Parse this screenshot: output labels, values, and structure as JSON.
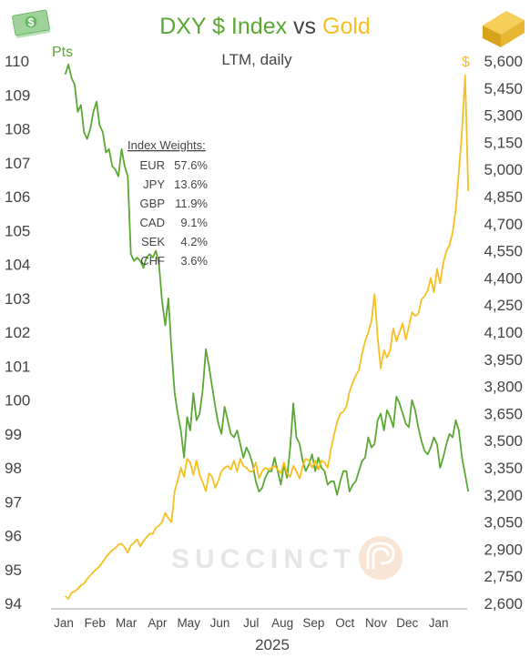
{
  "colors": {
    "dxy": "#5aa832",
    "gold": "#f7bf1f",
    "text": "#444444",
    "watermark": "#e4e4e4",
    "watermark_icon": "#f7e0cc"
  },
  "icons": {
    "left": "dollar-bills-icon",
    "right": "gold-bars-icon",
    "watermark": "succinct-logo-icon"
  },
  "watermark": {
    "text": "SUCCINCT"
  },
  "chart_data": {
    "type": "line",
    "title": {
      "part1": "DXY $ Index",
      "part2": " vs ",
      "part3": "Gold"
    },
    "subtitle": "LTM, daily",
    "left_axis": {
      "unit": "Pts",
      "ylim": [
        94,
        110
      ],
      "ticks": [
        "94",
        "95",
        "96",
        "97",
        "98",
        "99",
        "100",
        "101",
        "102",
        "103",
        "104",
        "105",
        "106",
        "107",
        "108",
        "109",
        "110"
      ]
    },
    "right_axis": {
      "unit": "$",
      "ylim": [
        2600,
        5600
      ],
      "ticks": [
        "2,600",
        "2,750",
        "2,900",
        "3,050",
        "3,200",
        "3,350",
        "3,500",
        "3,650",
        "3,800",
        "3,950",
        "4,100",
        "4,250",
        "4,400",
        "4,550",
        "4,700",
        "4,850",
        "5,000",
        "5,150",
        "5,300",
        "5,450",
        "5,600"
      ]
    },
    "x_axis": {
      "months": [
        "Jan",
        "Feb",
        "Mar",
        "Apr",
        "May",
        "Jun",
        "Jul",
        "Aug",
        "Sep",
        "Oct",
        "Nov",
        "Dec",
        "Jan"
      ],
      "year_label": "2025",
      "xlim": [
        0,
        12.95
      ]
    },
    "grid": false,
    "annotation": {
      "title": "Index Weights:",
      "rows": [
        {
          "ccy": "EUR",
          "pct": "57.6%"
        },
        {
          "ccy": "JPY",
          "pct": "13.6%"
        },
        {
          "ccy": "GBP",
          "pct": "11.9%"
        },
        {
          "ccy": "CAD",
          "pct": "9.1%"
        },
        {
          "ccy": "SEK",
          "pct": "4.2%"
        },
        {
          "ccy": "CHF",
          "pct": "3.6%"
        }
      ]
    },
    "series": [
      {
        "name": "DXY $ Index",
        "axis": "left",
        "points": [
          [
            0.05,
            109.6
          ],
          [
            0.15,
            109.9
          ],
          [
            0.25,
            109.5
          ],
          [
            0.35,
            109.3
          ],
          [
            0.45,
            108.5
          ],
          [
            0.55,
            108.7
          ],
          [
            0.65,
            107.9
          ],
          [
            0.75,
            107.7
          ],
          [
            0.85,
            108.0
          ],
          [
            0.95,
            108.5
          ],
          [
            1.05,
            108.8
          ],
          [
            1.15,
            108.1
          ],
          [
            1.25,
            107.9
          ],
          [
            1.35,
            107.3
          ],
          [
            1.45,
            107.4
          ],
          [
            1.55,
            106.9
          ],
          [
            1.65,
            106.8
          ],
          [
            1.75,
            106.6
          ],
          [
            1.85,
            107.4
          ],
          [
            1.95,
            106.9
          ],
          [
            2.05,
            106.6
          ],
          [
            2.15,
            104.3
          ],
          [
            2.25,
            104.1
          ],
          [
            2.35,
            104.2
          ],
          [
            2.45,
            104.1
          ],
          [
            2.55,
            103.9
          ],
          [
            2.65,
            104.2
          ],
          [
            2.75,
            104.3
          ],
          [
            2.85,
            104.2
          ],
          [
            2.95,
            104.4
          ],
          [
            3.05,
            104.0
          ],
          [
            3.15,
            102.9
          ],
          [
            3.25,
            102.2
          ],
          [
            3.35,
            103.0
          ],
          [
            3.45,
            101.5
          ],
          [
            3.55,
            100.2
          ],
          [
            3.65,
            99.6
          ],
          [
            3.75,
            99.1
          ],
          [
            3.85,
            98.3
          ],
          [
            3.95,
            99.5
          ],
          [
            4.05,
            99.1
          ],
          [
            4.15,
            100.2
          ],
          [
            4.25,
            99.4
          ],
          [
            4.35,
            99.6
          ],
          [
            4.45,
            100.3
          ],
          [
            4.55,
            101.5
          ],
          [
            4.65,
            101.0
          ],
          [
            4.75,
            100.4
          ],
          [
            4.85,
            99.8
          ],
          [
            4.95,
            99.3
          ],
          [
            5.05,
            99.0
          ],
          [
            5.15,
            99.8
          ],
          [
            5.25,
            99.4
          ],
          [
            5.35,
            99.0
          ],
          [
            5.45,
            98.9
          ],
          [
            5.55,
            99.1
          ],
          [
            5.65,
            98.7
          ],
          [
            5.75,
            98.3
          ],
          [
            5.85,
            98.6
          ],
          [
            5.95,
            98.4
          ],
          [
            6.05,
            98.1
          ],
          [
            6.15,
            97.6
          ],
          [
            6.25,
            97.3
          ],
          [
            6.35,
            97.4
          ],
          [
            6.45,
            97.7
          ],
          [
            6.55,
            97.9
          ],
          [
            6.65,
            97.9
          ],
          [
            6.75,
            98.3
          ],
          [
            6.85,
            97.9
          ],
          [
            6.95,
            97.5
          ],
          [
            7.05,
            98.1
          ],
          [
            7.15,
            97.7
          ],
          [
            7.25,
            98.6
          ],
          [
            7.35,
            99.9
          ],
          [
            7.45,
            98.9
          ],
          [
            7.55,
            98.7
          ],
          [
            7.65,
            98.2
          ],
          [
            7.75,
            97.9
          ],
          [
            7.85,
            98.1
          ],
          [
            7.95,
            98.4
          ],
          [
            8.05,
            97.9
          ],
          [
            8.15,
            98.3
          ],
          [
            8.25,
            98.0
          ],
          [
            8.35,
            97.9
          ],
          [
            8.45,
            97.5
          ],
          [
            8.55,
            97.6
          ],
          [
            8.65,
            97.6
          ],
          [
            8.75,
            97.2
          ],
          [
            8.85,
            97.6
          ],
          [
            8.95,
            97.9
          ],
          [
            9.05,
            97.9
          ],
          [
            9.15,
            97.3
          ],
          [
            9.25,
            97.5
          ],
          [
            9.35,
            97.6
          ],
          [
            9.45,
            97.9
          ],
          [
            9.55,
            98.2
          ],
          [
            9.65,
            98.3
          ],
          [
            9.75,
            98.9
          ],
          [
            9.85,
            98.6
          ],
          [
            9.95,
            98.7
          ],
          [
            10.05,
            99.4
          ],
          [
            10.15,
            99.6
          ],
          [
            10.25,
            99.1
          ],
          [
            10.35,
            99.7
          ],
          [
            10.45,
            99.5
          ],
          [
            10.55,
            99.2
          ],
          [
            10.65,
            100.1
          ],
          [
            10.75,
            99.9
          ],
          [
            10.85,
            99.6
          ],
          [
            10.95,
            99.3
          ],
          [
            11.05,
            99.2
          ],
          [
            11.15,
            100.0
          ],
          [
            11.25,
            99.7
          ],
          [
            11.35,
            99.2
          ],
          [
            11.45,
            98.8
          ],
          [
            11.55,
            98.5
          ],
          [
            11.65,
            98.4
          ],
          [
            11.75,
            98.6
          ],
          [
            11.85,
            98.9
          ],
          [
            11.95,
            98.7
          ],
          [
            12.05,
            98.0
          ],
          [
            12.15,
            98.3
          ],
          [
            12.25,
            98.7
          ],
          [
            12.35,
            99.0
          ],
          [
            12.45,
            98.9
          ],
          [
            12.55,
            99.4
          ],
          [
            12.65,
            99.1
          ],
          [
            12.75,
            98.3
          ],
          [
            12.85,
            97.8
          ],
          [
            12.95,
            97.3
          ]
        ]
      },
      {
        "name": "Gold",
        "axis": "right",
        "points": [
          [
            0.05,
            2640
          ],
          [
            0.15,
            2625
          ],
          [
            0.25,
            2660
          ],
          [
            0.35,
            2665
          ],
          [
            0.45,
            2680
          ],
          [
            0.55,
            2700
          ],
          [
            0.65,
            2710
          ],
          [
            0.75,
            2735
          ],
          [
            0.85,
            2755
          ],
          [
            0.95,
            2775
          ],
          [
            1.05,
            2790
          ],
          [
            1.15,
            2805
          ],
          [
            1.25,
            2830
          ],
          [
            1.35,
            2855
          ],
          [
            1.45,
            2875
          ],
          [
            1.55,
            2895
          ],
          [
            1.65,
            2905
          ],
          [
            1.75,
            2925
          ],
          [
            1.85,
            2930
          ],
          [
            1.95,
            2910
          ],
          [
            2.05,
            2880
          ],
          [
            2.15,
            2920
          ],
          [
            2.25,
            2935
          ],
          [
            2.35,
            2955
          ],
          [
            2.45,
            2915
          ],
          [
            2.55,
            2945
          ],
          [
            2.65,
            2965
          ],
          [
            2.75,
            2985
          ],
          [
            2.85,
            2985
          ],
          [
            2.95,
            3020
          ],
          [
            3.05,
            3030
          ],
          [
            3.15,
            3050
          ],
          [
            3.25,
            3100
          ],
          [
            3.35,
            3070
          ],
          [
            3.45,
            3050
          ],
          [
            3.55,
            3220
          ],
          [
            3.65,
            3280
          ],
          [
            3.75,
            3350
          ],
          [
            3.85,
            3300
          ],
          [
            3.95,
            3400
          ],
          [
            4.05,
            3380
          ],
          [
            4.15,
            3310
          ],
          [
            4.25,
            3390
          ],
          [
            4.35,
            3310
          ],
          [
            4.45,
            3270
          ],
          [
            4.55,
            3220
          ],
          [
            4.65,
            3320
          ],
          [
            4.75,
            3300
          ],
          [
            4.85,
            3240
          ],
          [
            4.95,
            3280
          ],
          [
            5.05,
            3330
          ],
          [
            5.15,
            3350
          ],
          [
            5.25,
            3360
          ],
          [
            5.35,
            3340
          ],
          [
            5.45,
            3390
          ],
          [
            5.55,
            3330
          ],
          [
            5.65,
            3400
          ],
          [
            5.75,
            3360
          ],
          [
            5.85,
            3350
          ],
          [
            5.95,
            3330
          ],
          [
            6.05,
            3330
          ],
          [
            6.15,
            3380
          ],
          [
            6.25,
            3290
          ],
          [
            6.35,
            3330
          ],
          [
            6.45,
            3350
          ],
          [
            6.55,
            3340
          ],
          [
            6.65,
            3350
          ],
          [
            6.75,
            3360
          ],
          [
            6.85,
            3340
          ],
          [
            6.95,
            3320
          ],
          [
            7.05,
            3380
          ],
          [
            7.15,
            3320
          ],
          [
            7.25,
            3300
          ],
          [
            7.35,
            3360
          ],
          [
            7.45,
            3330
          ],
          [
            7.55,
            3290
          ],
          [
            7.65,
            3360
          ],
          [
            7.75,
            3400
          ],
          [
            7.85,
            3390
          ],
          [
            7.95,
            3350
          ],
          [
            8.05,
            3390
          ],
          [
            8.15,
            3340
          ],
          [
            8.25,
            3390
          ],
          [
            8.35,
            3380
          ],
          [
            8.45,
            3350
          ],
          [
            8.55,
            3450
          ],
          [
            8.65,
            3530
          ],
          [
            8.75,
            3600
          ],
          [
            8.85,
            3650
          ],
          [
            8.95,
            3660
          ],
          [
            9.05,
            3690
          ],
          [
            9.15,
            3770
          ],
          [
            9.25,
            3820
          ],
          [
            9.35,
            3860
          ],
          [
            9.45,
            3890
          ],
          [
            9.55,
            3980
          ],
          [
            9.65,
            4050
          ],
          [
            9.75,
            4100
          ],
          [
            9.85,
            4160
          ],
          [
            9.95,
            4310
          ],
          [
            10.05,
            4070
          ],
          [
            10.15,
            3900
          ],
          [
            10.25,
            4000
          ],
          [
            10.35,
            3960
          ],
          [
            10.45,
            4000
          ],
          [
            10.55,
            4120
          ],
          [
            10.65,
            4050
          ],
          [
            10.75,
            4100
          ],
          [
            10.85,
            4150
          ],
          [
            10.95,
            4060
          ],
          [
            11.05,
            4130
          ],
          [
            11.15,
            4210
          ],
          [
            11.25,
            4190
          ],
          [
            11.35,
            4200
          ],
          [
            11.45,
            4280
          ],
          [
            11.55,
            4300
          ],
          [
            11.65,
            4330
          ],
          [
            11.75,
            4400
          ],
          [
            11.85,
            4320
          ],
          [
            11.95,
            4450
          ],
          [
            12.05,
            4370
          ],
          [
            12.15,
            4480
          ],
          [
            12.25,
            4550
          ],
          [
            12.35,
            4580
          ],
          [
            12.45,
            4650
          ],
          [
            12.55,
            4780
          ],
          [
            12.65,
            4990
          ],
          [
            12.75,
            5210
          ],
          [
            12.85,
            5520
          ],
          [
            12.95,
            4880
          ]
        ]
      }
    ]
  }
}
